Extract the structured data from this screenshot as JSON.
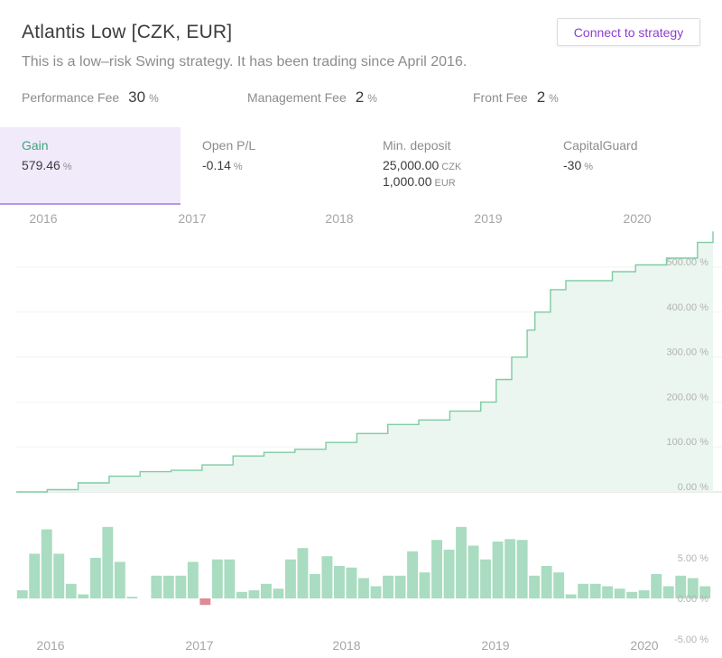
{
  "header": {
    "title": "Atlantis Low [CZK, EUR]",
    "subtitle": "This is a low–risk Swing strategy. It has been trading since April 2016.",
    "connect_label": "Connect to strategy"
  },
  "fees": [
    {
      "label": "Performance Fee",
      "value": "30",
      "unit": "%"
    },
    {
      "label": "Management Fee",
      "value": "2",
      "unit": "%"
    },
    {
      "label": "Front Fee",
      "value": "2",
      "unit": "%"
    }
  ],
  "tabs": [
    {
      "label": "Gain",
      "value": "579.46",
      "unit": "%",
      "active": true
    },
    {
      "label": "Open P/L",
      "value": "-0.14",
      "unit": "%"
    },
    {
      "label": "Min. deposit",
      "value": "25,000.00",
      "unit": "CZK",
      "value2": "1,000.00",
      "unit2": "EUR"
    },
    {
      "label": "CapitalGuard",
      "value": "-30",
      "unit": "%"
    }
  ],
  "colors": {
    "accent": "#8e3fd1",
    "line": "#7fcba4",
    "area": "#eaf6ef",
    "bar_positive": "#a9dcc0",
    "bar_negative": "#e08a96"
  },
  "chart_data": [
    {
      "type": "area",
      "x_axis_labels": [
        "2016",
        "2017",
        "2018",
        "2019",
        "2020"
      ],
      "y_tick_labels": [
        "0.00 %",
        "100.00 %",
        "200.00 %",
        "300.00 %",
        "400.00 %",
        "500.00 %"
      ],
      "ylim": [
        0,
        580
      ],
      "x": [
        2016.0,
        2016.2,
        2016.4,
        2016.6,
        2016.8,
        2017.0,
        2017.2,
        2017.4,
        2017.6,
        2017.8,
        2018.0,
        2018.2,
        2018.4,
        2018.6,
        2018.8,
        2019.0,
        2019.1,
        2019.2,
        2019.3,
        2019.35,
        2019.45,
        2019.55,
        2019.7,
        2019.85,
        2020.0,
        2020.2,
        2020.4,
        2020.5
      ],
      "values": [
        0,
        5,
        20,
        35,
        45,
        48,
        60,
        80,
        88,
        95,
        110,
        130,
        150,
        160,
        180,
        200,
        250,
        300,
        360,
        400,
        450,
        470,
        470,
        490,
        505,
        520,
        555,
        579.46
      ]
    },
    {
      "type": "bar",
      "x_axis_labels": [
        "2016",
        "2017",
        "2018",
        "2019",
        "2020"
      ],
      "y_tick_labels": [
        "5.00 %",
        "0.00 %",
        "-5.00 %"
      ],
      "ylim": [
        -6,
        9
      ],
      "values": [
        1.0,
        5.5,
        8.5,
        5.5,
        1.8,
        0.5,
        5.0,
        8.8,
        4.5,
        0.2,
        0,
        2.8,
        2.8,
        2.8,
        4.5,
        -0.8,
        4.8,
        4.8,
        0.8,
        1.0,
        1.8,
        1.2,
        4.8,
        6.2,
        3.0,
        5.2,
        4.0,
        3.8,
        2.5,
        1.5,
        2.8,
        2.8,
        5.8,
        3.2,
        7.2,
        6.0,
        8.8,
        6.5,
        4.8,
        7.0,
        7.3,
        7.2,
        2.8,
        4.0,
        3.2,
        0.5,
        1.8,
        1.8,
        1.5,
        1.2,
        0.8,
        1.0,
        3.0,
        1.5,
        2.8,
        2.5,
        1.5
      ]
    }
  ]
}
